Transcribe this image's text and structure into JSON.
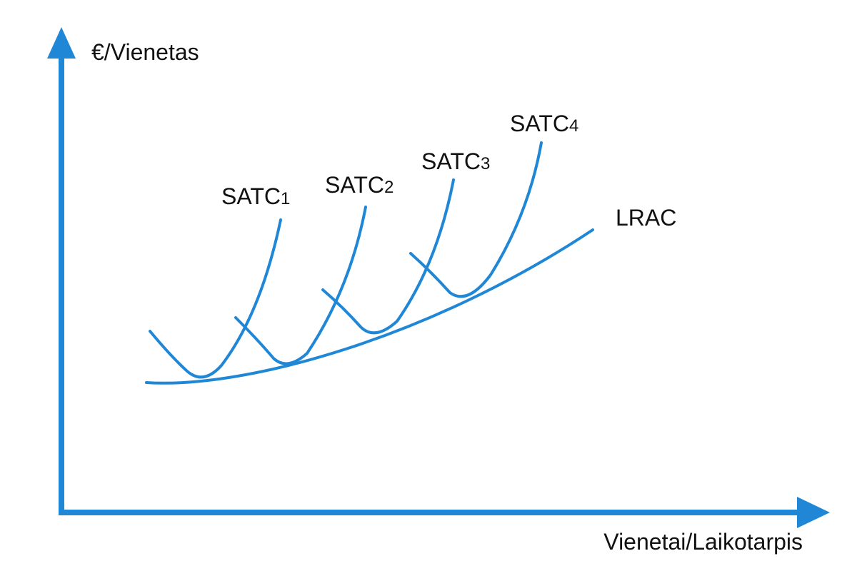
{
  "colors": {
    "accent": "#1f87d6",
    "text": "#111111",
    "background": "#ffffff"
  },
  "axes": {
    "y_label": "€/Vienetas",
    "x_label": "Vienetai/Laikotarpis"
  },
  "curves": {
    "satc1": {
      "label": "SATC",
      "subscript": "1"
    },
    "satc2": {
      "label": "SATC",
      "subscript": "2"
    },
    "satc3": {
      "label": "SATC",
      "subscript": "3"
    },
    "satc4": {
      "label": "SATC",
      "subscript": "4"
    },
    "lrac": {
      "label": "LRAC"
    }
  }
}
